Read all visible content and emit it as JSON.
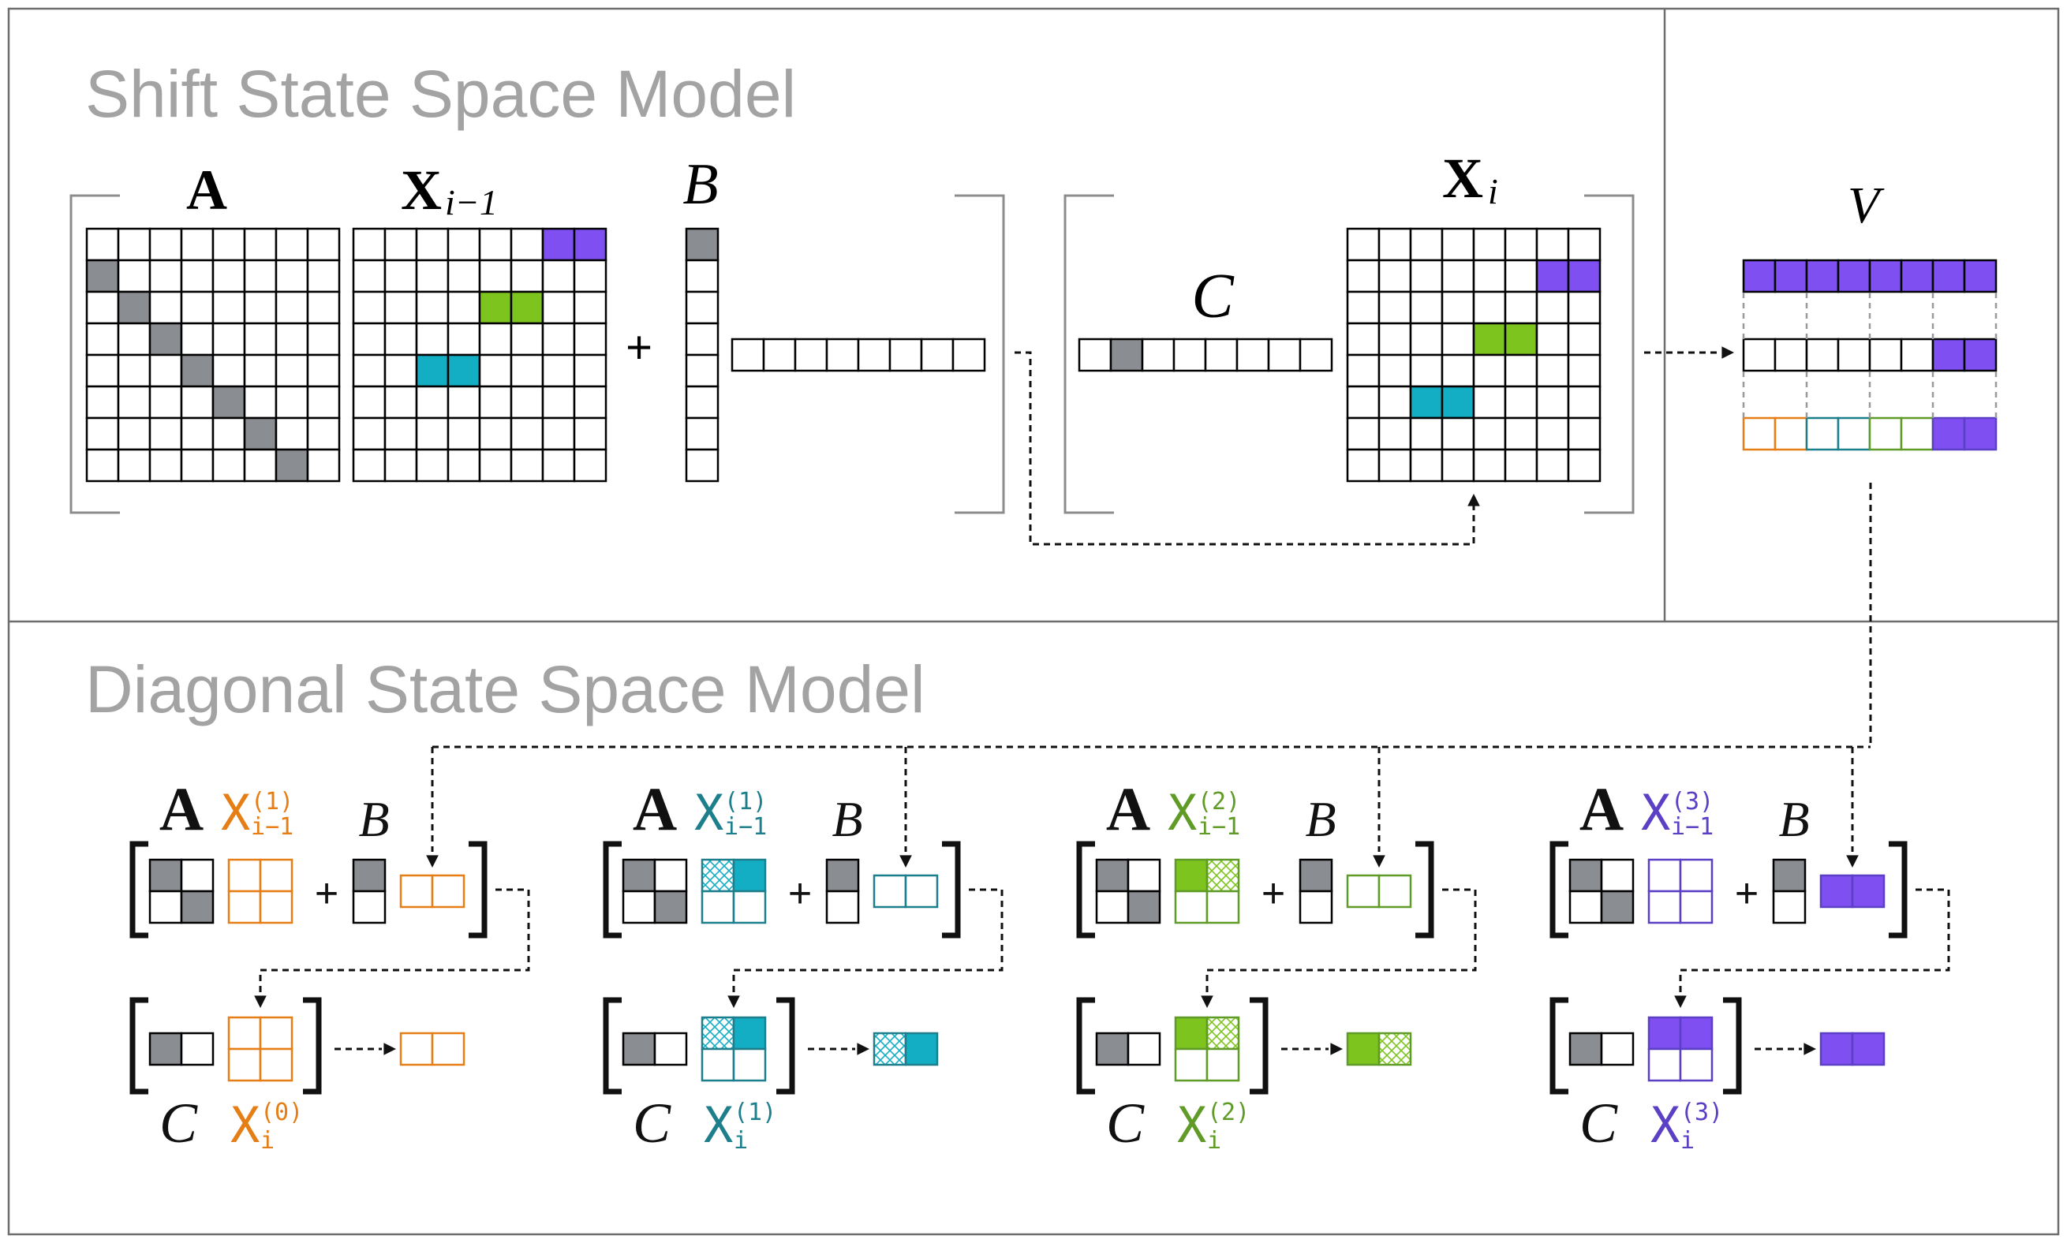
{
  "colors": {
    "gray": "#8a8e92",
    "purple": "#7f4ff2",
    "purple_dark": "#5b3fc4",
    "green": "#7ec41f",
    "green_dark": "#5f9b26",
    "cyan": "#14aec4",
    "cyan_dark": "#1d7f8c",
    "orange": "#e67e16",
    "panel_border": "#6e6e6e",
    "bracket_gray": "#8c8c8c",
    "title_gray": "#a3a3a3"
  },
  "shift": {
    "title": "Shift State Space Model",
    "matrix_A_label": "A",
    "matrix_X_label": "X",
    "matrix_X_sub": "i−1",
    "vector_B_label": "B",
    "vector_C_label": "C",
    "matrix_Xi_label": "X",
    "matrix_Xi_sub": "i",
    "plus": "+",
    "V_label": "V"
  },
  "diagonal": {
    "title": "Diagonal State Space Model",
    "blocks": [
      {
        "A_label": "A",
        "B_label": "B",
        "C_label": "C",
        "X_label": "X",
        "x_prev_sup": "(1)",
        "x_prev_sub": "i−1",
        "x_next_sup": "(0)",
        "x_next_sub": "i",
        "plus": "+"
      },
      {
        "A_label": "A",
        "B_label": "B",
        "C_label": "C",
        "X_label": "X",
        "x_prev_sup": "(1)",
        "x_prev_sub": "i−1",
        "x_next_sup": "(1)",
        "x_next_sub": "i",
        "plus": "+"
      },
      {
        "A_label": "A",
        "B_label": "B",
        "C_label": "C",
        "X_label": "X",
        "x_prev_sup": "(2)",
        "x_prev_sub": "i−1",
        "x_next_sup": "(2)",
        "x_next_sub": "i",
        "plus": "+"
      },
      {
        "A_label": "A",
        "B_label": "B",
        "C_label": "C",
        "X_label": "X",
        "x_prev_sup": "(3)",
        "x_prev_sub": "i−1",
        "x_next_sup": "(3)",
        "x_next_sub": "i",
        "plus": "+"
      }
    ]
  }
}
